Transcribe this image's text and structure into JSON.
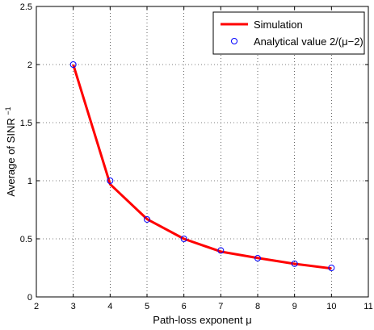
{
  "chart_data": {
    "type": "line",
    "title": "",
    "xlabel": "Path-loss exponent μ",
    "ylabel": "Average of SINR",
    "ylabel_superscript": "−1",
    "xlim": [
      2,
      11
    ],
    "ylim": [
      0,
      2.5
    ],
    "xticks": [
      2,
      3,
      4,
      5,
      6,
      7,
      8,
      9,
      10,
      11
    ],
    "yticks": [
      0,
      0.5,
      1,
      1.5,
      2,
      2.5
    ],
    "xtick_labels": [
      "2",
      "3",
      "4",
      "5",
      "6",
      "7",
      "8",
      "9",
      "10",
      "11"
    ],
    "ytick_labels": [
      "0",
      "0.5",
      "1",
      "1.5",
      "2",
      "2.5"
    ],
    "grid": true,
    "legend_position": "top-right",
    "series": [
      {
        "name": "Simulation",
        "style": "line",
        "color": "#ff0000",
        "x": [
          3,
          4,
          5,
          6,
          7,
          8,
          9,
          10
        ],
        "y": [
          2.0,
          0.97,
          0.67,
          0.5,
          0.39,
          0.335,
          0.285,
          0.245
        ]
      },
      {
        "name": "Analytical value 2/(μ−2)",
        "style": "marker",
        "marker": "circle",
        "color": "#0000ff",
        "x": [
          3,
          4,
          5,
          6,
          7,
          8,
          9,
          10
        ],
        "y": [
          2.0,
          1.0,
          0.667,
          0.5,
          0.4,
          0.333,
          0.286,
          0.25
        ]
      }
    ]
  }
}
